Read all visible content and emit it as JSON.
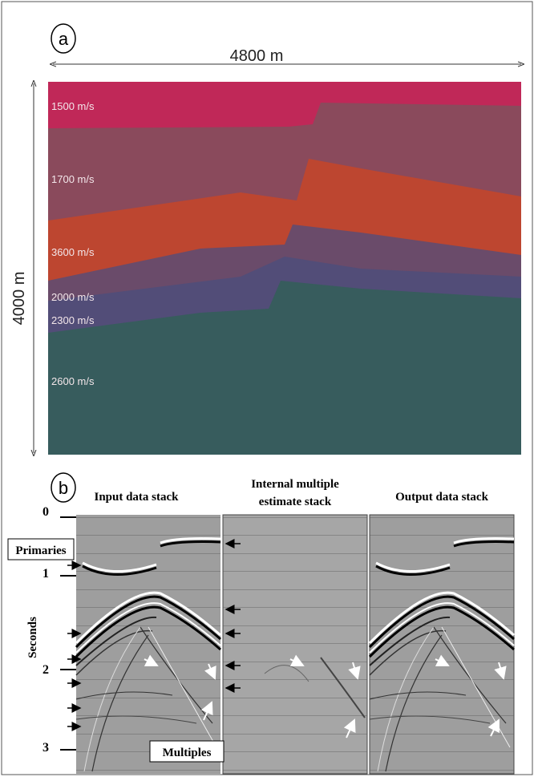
{
  "panel_a": {
    "label": "a",
    "width_label": "4800 m",
    "height_label": "4000 m",
    "layers": [
      "1500 m/s",
      "1700 m/s",
      "3600 m/s",
      "2000 m/s",
      "2300 m/s",
      "2600 m/s"
    ]
  },
  "panel_b": {
    "label": "b",
    "panel_titles": [
      [
        "Input data stack"
      ],
      [
        "Internal multiple",
        "estimate stack"
      ],
      [
        "Output data stack"
      ]
    ],
    "axis_label": "Seconds",
    "ticks": [
      "0",
      "1",
      "2",
      "3"
    ],
    "annotations": {
      "primaries": "Primaries",
      "multiples": "Multiples"
    }
  }
}
